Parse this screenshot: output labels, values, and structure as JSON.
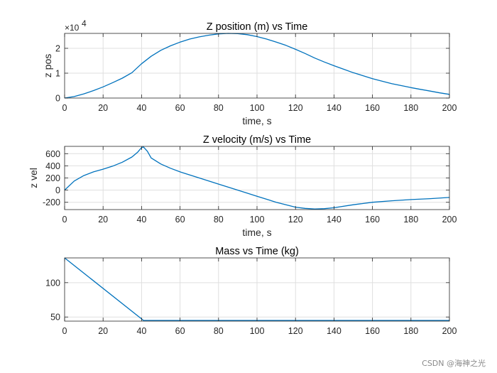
{
  "watermark": "CSDN @海神之光",
  "chart_data": [
    {
      "type": "line",
      "title": "Z position (m) vs Time",
      "xlabel": "time, s",
      "ylabel": "z pos",
      "exponent_base": "×10",
      "exponent_power": "4",
      "xlim": [
        0,
        200
      ],
      "ylim": [
        0,
        2.6
      ],
      "xticks": [
        0,
        20,
        40,
        60,
        80,
        100,
        120,
        140,
        160,
        180,
        200
      ],
      "yticks": [
        0,
        1,
        2
      ],
      "color": "#0072BD",
      "series": [
        {
          "name": "z pos",
          "x": [
            0,
            5,
            10,
            15,
            20,
            25,
            30,
            35,
            40,
            45,
            50,
            55,
            60,
            65,
            70,
            75,
            80,
            85,
            90,
            95,
            100,
            105,
            110,
            115,
            120,
            125,
            130,
            135,
            140,
            145,
            150,
            155,
            160,
            165,
            170,
            175,
            180,
            185,
            190,
            195,
            200
          ],
          "y": [
            0,
            0.06,
            0.17,
            0.3,
            0.45,
            0.62,
            0.8,
            1.02,
            1.38,
            1.68,
            1.92,
            2.1,
            2.25,
            2.37,
            2.46,
            2.53,
            2.58,
            2.6,
            2.59,
            2.55,
            2.47,
            2.37,
            2.25,
            2.12,
            1.96,
            1.79,
            1.61,
            1.45,
            1.3,
            1.16,
            1.02,
            0.9,
            0.78,
            0.68,
            0.58,
            0.5,
            0.42,
            0.35,
            0.28,
            0.21,
            0.15
          ]
        }
      ]
    },
    {
      "type": "line",
      "title": "Z velocity (m/s) vs Time",
      "xlabel": "time, s",
      "ylabel": "z vel",
      "xlim": [
        0,
        200
      ],
      "ylim": [
        -320,
        720
      ],
      "xticks": [
        0,
        20,
        40,
        60,
        80,
        100,
        120,
        140,
        160,
        180,
        200
      ],
      "yticks": [
        -200,
        0,
        200,
        400,
        600
      ],
      "color": "#0072BD",
      "series": [
        {
          "name": "z vel",
          "x": [
            0,
            5,
            10,
            15,
            20,
            25,
            30,
            35,
            38,
            40,
            41,
            43,
            45,
            50,
            55,
            60,
            70,
            80,
            90,
            100,
            110,
            120,
            125,
            130,
            135,
            140,
            150,
            160,
            170,
            180,
            190,
            200
          ],
          "y": [
            0,
            150,
            240,
            300,
            345,
            395,
            460,
            545,
            625,
            700,
            710,
            640,
            530,
            430,
            360,
            300,
            200,
            100,
            0,
            -100,
            -200,
            -280,
            -300,
            -310,
            -305,
            -290,
            -240,
            -200,
            -175,
            -155,
            -140,
            -120
          ]
        }
      ]
    },
    {
      "type": "line",
      "title": "Mass vs Time (kg)",
      "xlabel": "",
      "ylabel": "",
      "xlim": [
        0,
        200
      ],
      "ylim": [
        44,
        136
      ],
      "xticks": [
        0,
        20,
        40,
        60,
        80,
        100,
        120,
        140,
        160,
        180,
        200
      ],
      "yticks": [
        50,
        100
      ],
      "color": "#0072BD",
      "series": [
        {
          "name": "mass",
          "x": [
            0,
            41,
            200
          ],
          "y": [
            136,
            45,
            45
          ]
        }
      ]
    }
  ]
}
